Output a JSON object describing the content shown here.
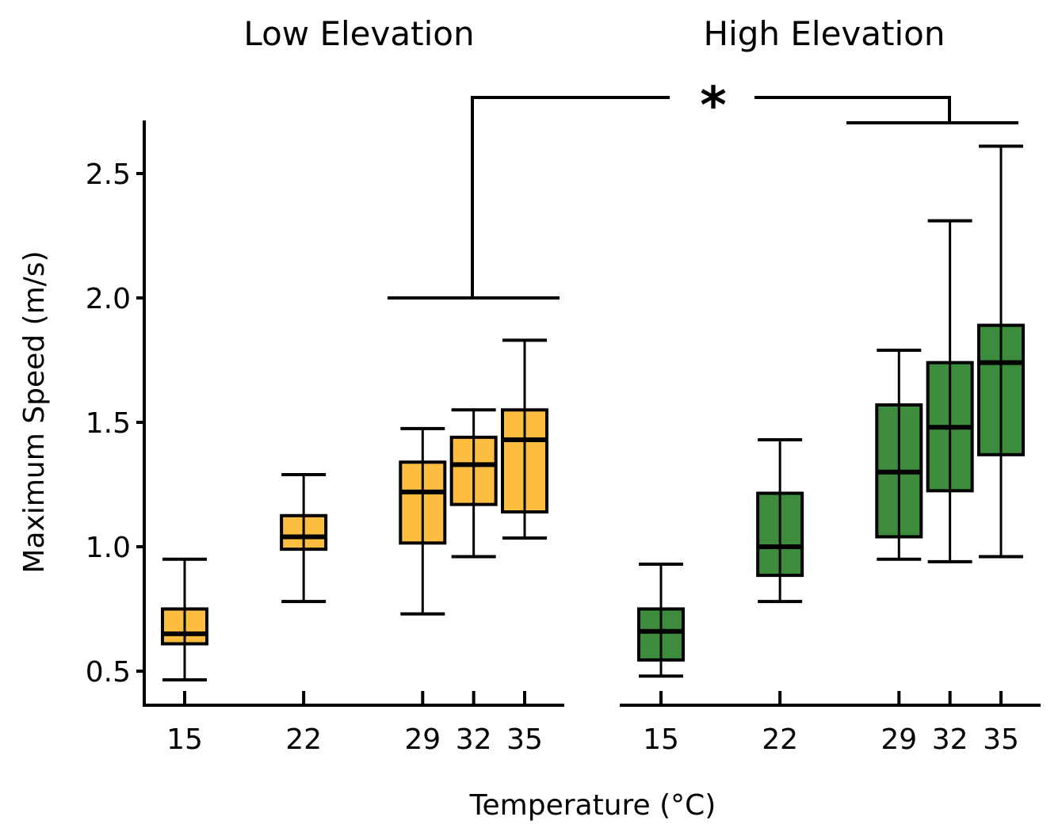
{
  "chart_data": {
    "type": "box",
    "ylabel": "Maximum Speed (m/s)",
    "xlabel": "Temperature (°C)",
    "ylim": [
      0.36,
      2.71
    ],
    "yticks": [
      "0.5",
      "1.0",
      "1.5",
      "2.0",
      "2.5"
    ],
    "ytick_values": [
      0.5,
      1.0,
      1.5,
      2.0,
      2.5
    ],
    "grid": false,
    "annotation": "*",
    "panels": [
      {
        "title": "Low Elevation",
        "color": "#FDBD40",
        "temps": [
          15,
          22,
          29,
          32,
          35
        ],
        "tick_labels": [
          "15",
          "22",
          "29",
          "32",
          "35"
        ],
        "boxes": [
          {
            "min": 0.465,
            "q1": 0.61,
            "median": 0.65,
            "q3": 0.75,
            "max": 0.95
          },
          {
            "min": 0.78,
            "q1": 0.99,
            "median": 1.04,
            "q3": 1.125,
            "max": 1.29
          },
          {
            "min": 0.73,
            "q1": 1.015,
            "median": 1.22,
            "q3": 1.34,
            "max": 1.475
          },
          {
            "min": 0.96,
            "q1": 1.17,
            "median": 1.33,
            "q3": 1.44,
            "max": 1.55
          },
          {
            "min": 1.035,
            "q1": 1.14,
            "median": 1.43,
            "q3": 1.55,
            "max": 1.83
          }
        ]
      },
      {
        "title": "High Elevation",
        "color": "#3D8B3D",
        "temps": [
          15,
          22,
          29,
          32,
          35
        ],
        "tick_labels": [
          "15",
          "22",
          "29",
          "32",
          "35"
        ],
        "boxes": [
          {
            "min": 0.48,
            "q1": 0.545,
            "median": 0.66,
            "q3": 0.75,
            "max": 0.93
          },
          {
            "min": 0.78,
            "q1": 0.885,
            "median": 1.0,
            "q3": 1.215,
            "max": 1.43
          },
          {
            "min": 0.95,
            "q1": 1.04,
            "median": 1.3,
            "q3": 1.57,
            "max": 1.79
          },
          {
            "min": 0.94,
            "q1": 1.225,
            "median": 1.48,
            "q3": 1.74,
            "max": 2.31
          },
          {
            "min": 0.96,
            "q1": 1.37,
            "median": 1.74,
            "q3": 1.89,
            "max": 2.61
          }
        ]
      }
    ]
  }
}
